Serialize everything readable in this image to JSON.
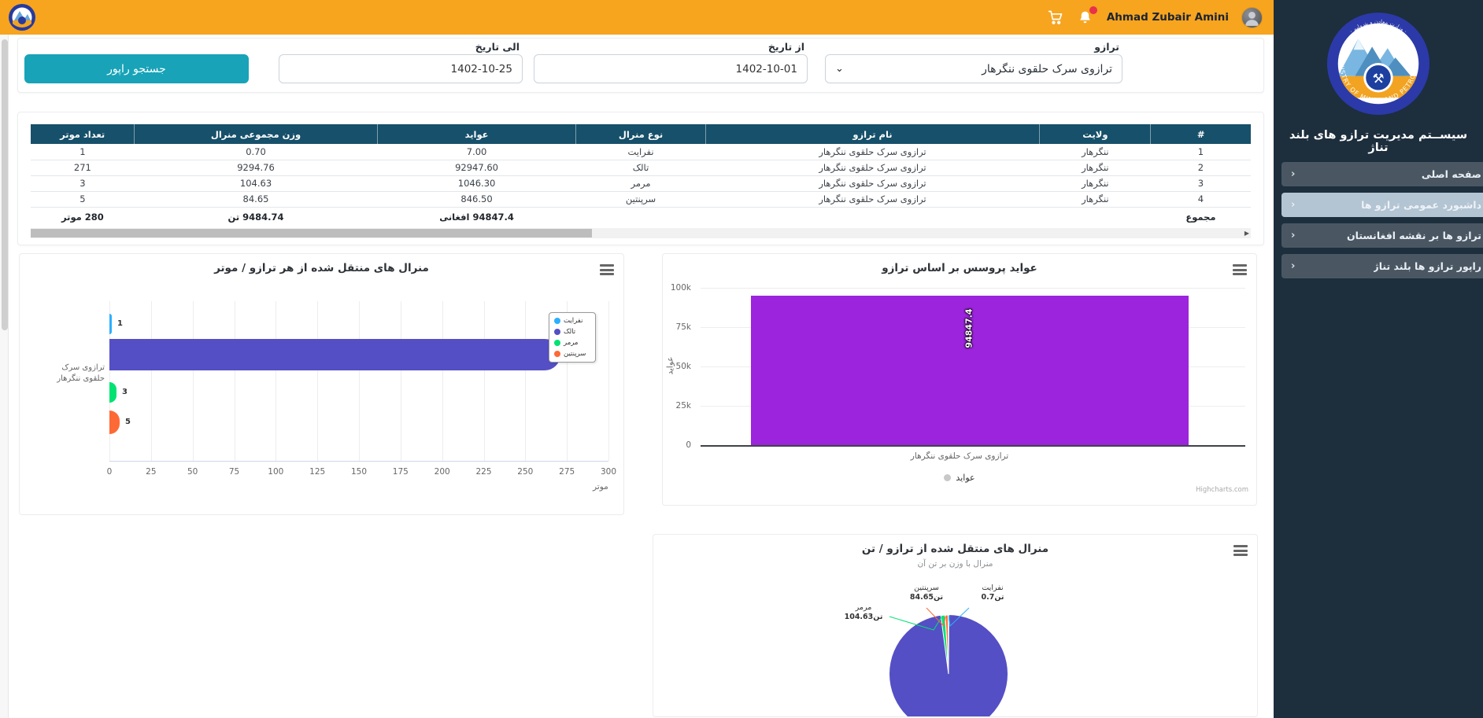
{
  "topbar": {
    "user_name": "Ahmad Zubair Amini"
  },
  "sidebar": {
    "logo_ring_text": "MINISTRY OF MINES AND PETROLEUM",
    "title": "سیســتم مدیریت ترازو های بلند تناژ",
    "chevron": "›",
    "active_index": 1,
    "items": [
      {
        "label": "صفحه اصلی"
      },
      {
        "label": "داشبورد عمومی ترازو ها"
      },
      {
        "label": "ترازو ها بر نقشه افغانستان"
      },
      {
        "label": "راپور ترازو ها بلند تناژ"
      }
    ]
  },
  "filters": {
    "scale_label": "ترازو",
    "scale_value": "ترازوی سرک حلقوی ننگرهار",
    "from_label": "از تاریخ",
    "from_value": "1402-10-01",
    "to_label": "الی تاریخ",
    "to_value": "1402-10-25",
    "search_button": "جستجو راپور",
    "select_caret": "⌄",
    "accent_color": "#18a3b8"
  },
  "table": {
    "headers": [
      "#",
      "ولایت",
      "نام ترازو",
      "نوع منرال",
      "عواید",
      "وزن مجموعی منرال",
      "تعداد موتر"
    ],
    "col_widths_pct": [
      8.2,
      9.1,
      27.4,
      10.6,
      16.3,
      19.9,
      8.5
    ],
    "rows": [
      [
        "1",
        "ننگرهار",
        "ترازوی سرک حلقوی ننگرهار",
        "نفرایت",
        "7.00",
        "0.70",
        "1"
      ],
      [
        "2",
        "ننگرهار",
        "ترازوی سرک حلقوی ننگرهار",
        "تالک",
        "92947.60",
        "9294.76",
        "271"
      ],
      [
        "3",
        "ننگرهار",
        "ترازوی سرک حلقوی ننگرهار",
        "مرمر",
        "1046.30",
        "104.63",
        "3"
      ],
      [
        "4",
        "ننگرهار",
        "ترازوی سرک حلقوی ننگرهار",
        "سرپنتین",
        "846.50",
        "84.65",
        "5"
      ]
    ],
    "total_row": [
      "مجموع",
      "",
      "",
      "",
      "94847.4 افغانی",
      "9484.74 تن",
      "280 موتر"
    ],
    "scroll_arrow": "▶",
    "header_color": "#17506a"
  },
  "chart_data": [
    {
      "type": "bar",
      "title": "منرال های منتقل شده از هر ترازو / موتر",
      "categories": [
        "ترازوی سرک",
        "حلقوی ننگرهار"
      ],
      "series": [
        {
          "name": "نفرایت",
          "values": [
            1
          ],
          "color": "#2caffe"
        },
        {
          "name": "تالک",
          "values": [
            271
          ],
          "color": "#544fc5"
        },
        {
          "name": "مرمر",
          "values": [
            3
          ],
          "color": "#00e272"
        },
        {
          "name": "سرپنتین",
          "values": [
            5
          ],
          "color": "#fe6a35"
        }
      ],
      "xlabel": "موتر",
      "xlim": [
        0,
        300
      ],
      "xticks": [
        0,
        25,
        50,
        75,
        100,
        125,
        150,
        175,
        200,
        225,
        250,
        275,
        300
      ],
      "legend_position": "floating-right",
      "grid": true
    },
    {
      "type": "column",
      "title": "عواید پروسس بر اساس ترازو",
      "categories": [
        "ترازوی سرک حلقوی ننگرهار"
      ],
      "series": [
        {
          "name": "عواید",
          "values": [
            94847.4
          ],
          "color": "#9c24dd"
        }
      ],
      "data_label": "94847.4",
      "ylabel": "عواید",
      "ylim": [
        0,
        100000
      ],
      "yticks": [
        "0",
        "25k",
        "50k",
        "75k",
        "100k"
      ],
      "legend_position": "bottom",
      "grid": true,
      "credit": "Highcharts.com"
    },
    {
      "type": "pie",
      "title": "منرال های منتقل شده از ترازو / تن",
      "subtitle": "منرال با وزن بر تن آن",
      "slices": [
        {
          "name": "نفرایت",
          "value": 0.7,
          "label": "0.7تن",
          "color": "#2caffe"
        },
        {
          "name": "تالک",
          "value": 9294.76,
          "label": "",
          "color": "#544fc5"
        },
        {
          "name": "مرمر",
          "value": 104.63,
          "label": "104.63تن",
          "color": "#00e272"
        },
        {
          "name": "سرپنتین",
          "value": 84.65,
          "label": "84.65تن",
          "color": "#fe6a35"
        }
      ]
    }
  ]
}
